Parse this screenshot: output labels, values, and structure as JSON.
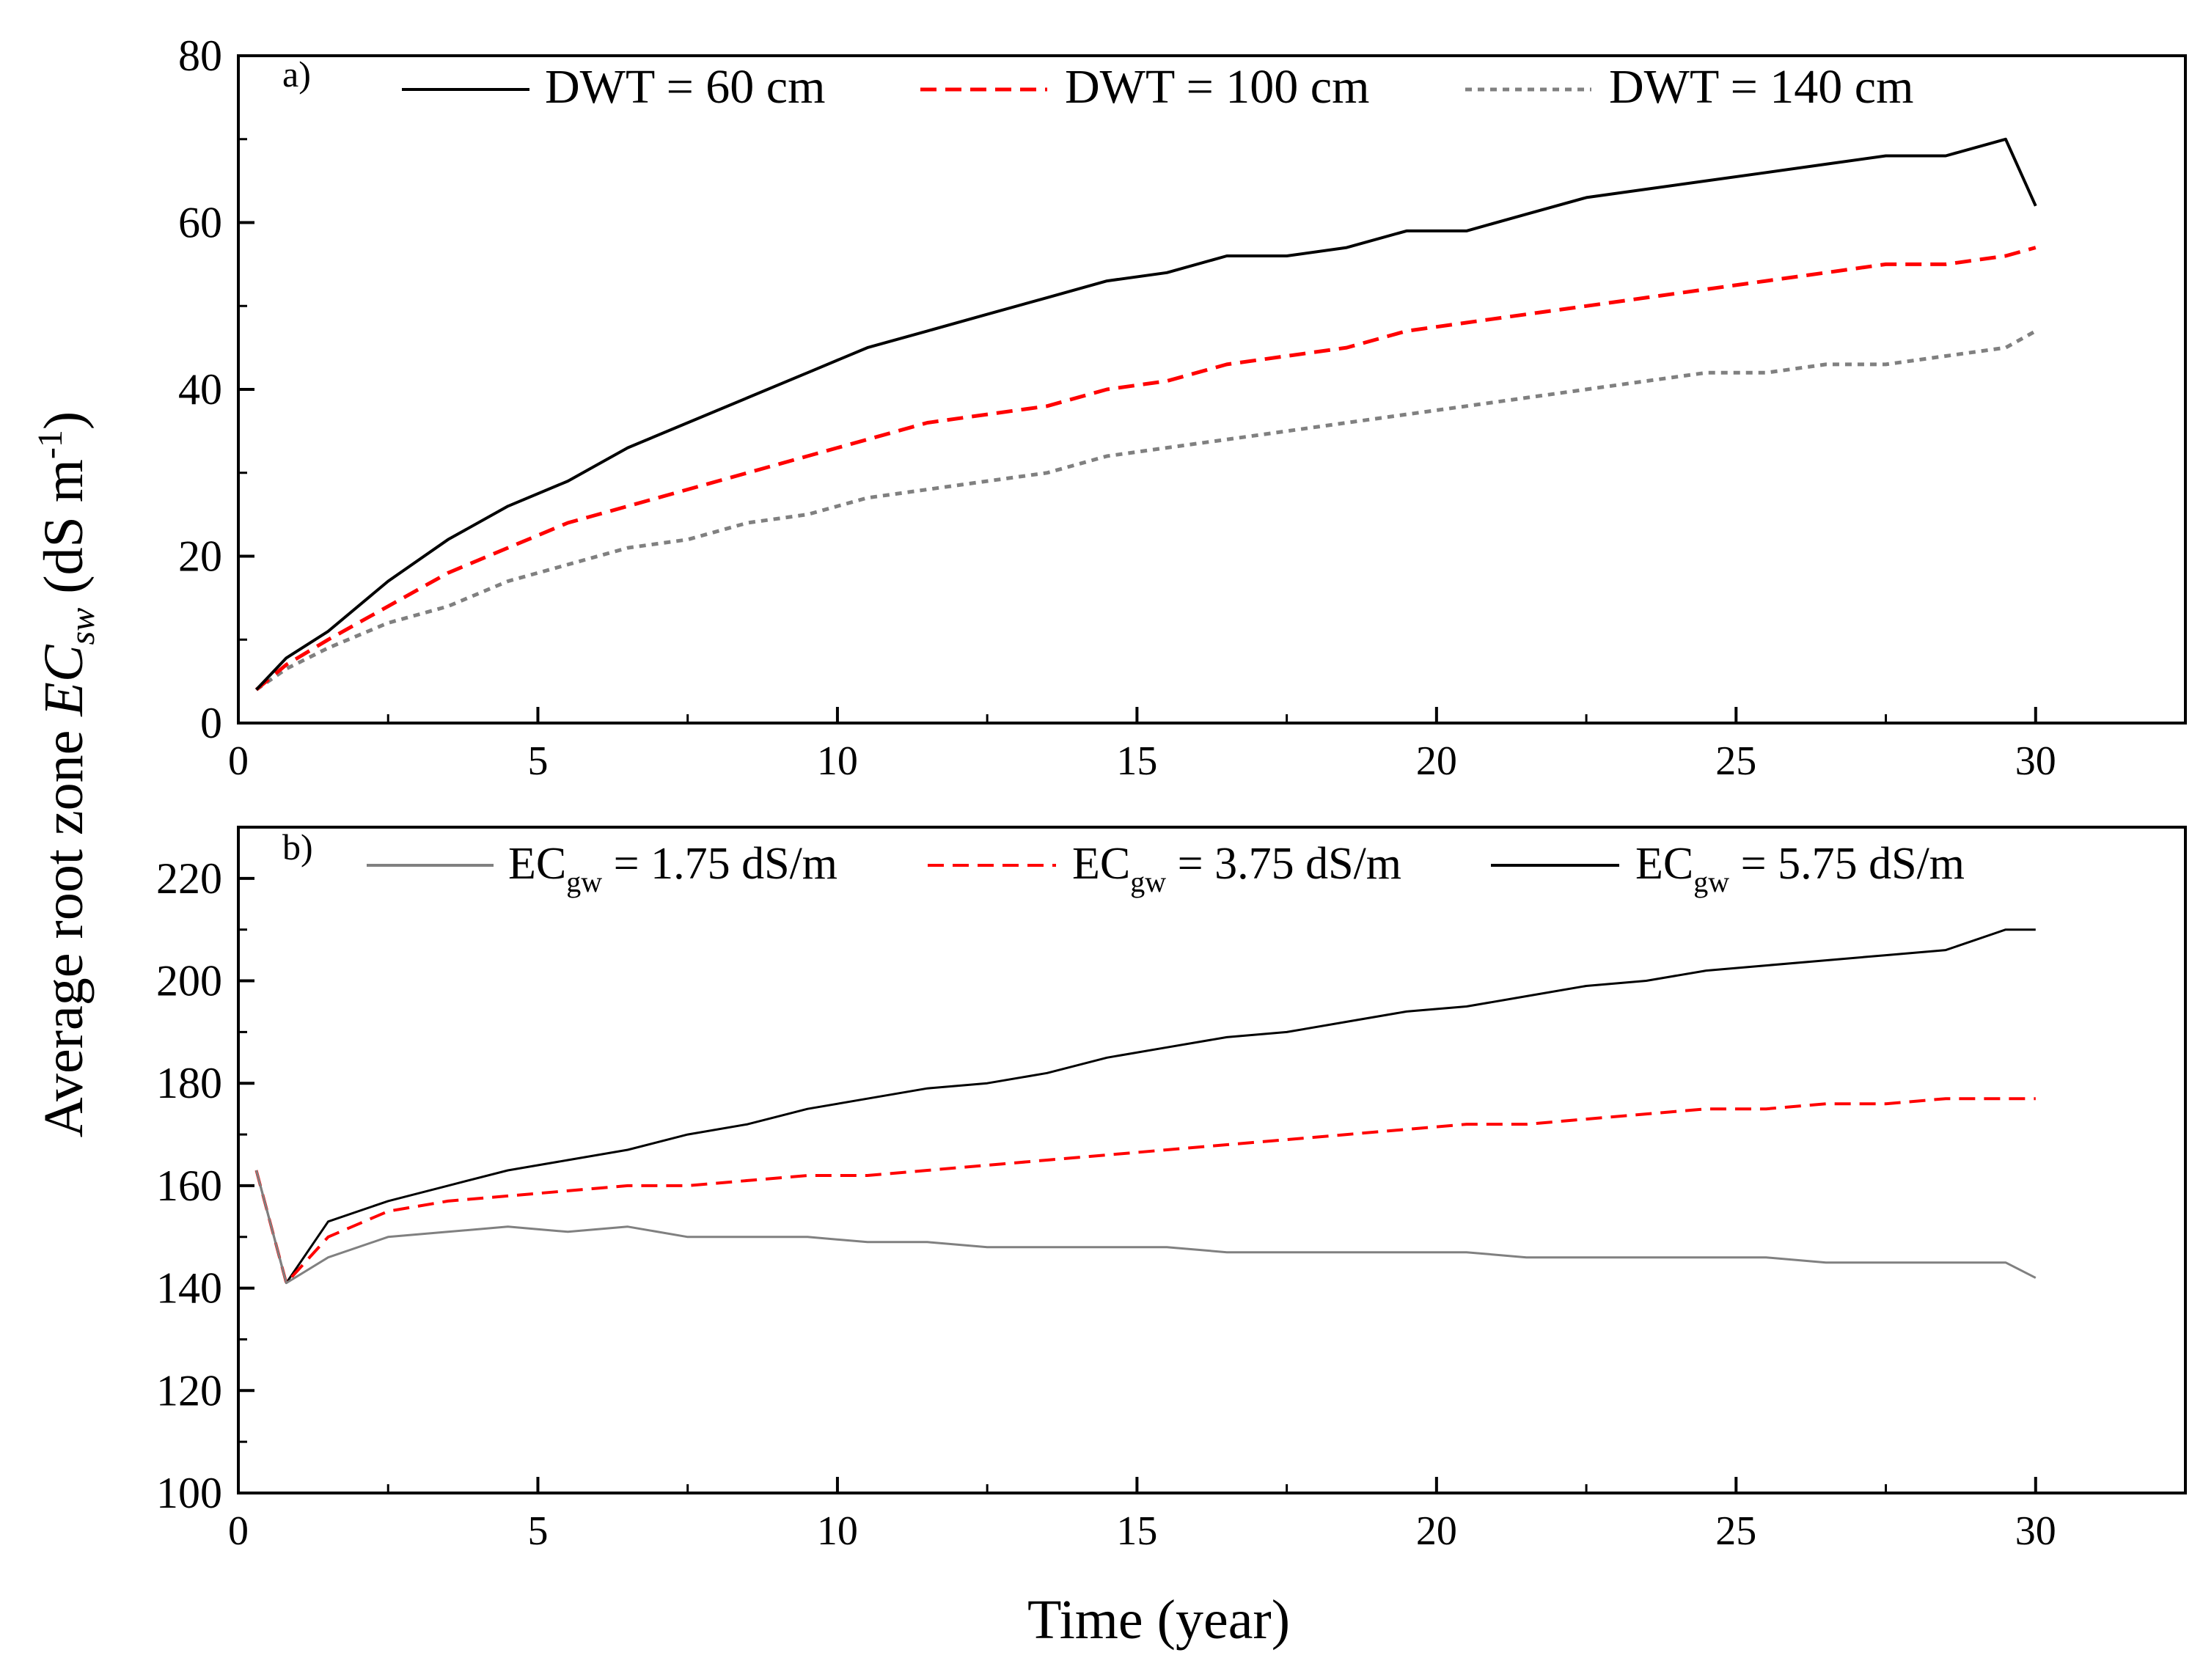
{
  "figure": {
    "shared_ylabel_main": "Average root zone ",
    "shared_ylabel_ec": "EC",
    "shared_ylabel_sub": "sw",
    "shared_ylabel_unit_open": " (dS m",
    "shared_ylabel_unit_sup": "-1",
    "shared_ylabel_unit_close": ")",
    "shared_xlabel": "Time (year)"
  },
  "colors": {
    "black": "#000000",
    "red": "#ff0000",
    "gray": "#808080"
  },
  "chart_data": [
    {
      "type": "line",
      "panel_label": "a)",
      "xlim": [
        0,
        32.5
      ],
      "ylim": [
        0,
        80
      ],
      "xticks": [
        0,
        5,
        10,
        15,
        20,
        25,
        30
      ],
      "yticks": [
        0,
        20,
        40,
        60,
        80
      ],
      "grid": false,
      "legend_position": "top",
      "series": [
        {
          "name": "DWT = 60 cm",
          "label_text": "DWT = 60 cm",
          "color": "#000000",
          "dash": "solid",
          "x": [
            0.3,
            0.8,
            1.5,
            2.5,
            3.5,
            4.5,
            5.5,
            6.5,
            7.5,
            8.5,
            9.5,
            10.5,
            11.5,
            12.5,
            13.5,
            14.5,
            15.5,
            16.5,
            17.5,
            18.5,
            19.5,
            20.5,
            21.5,
            22.5,
            23.5,
            24.5,
            25.5,
            26.5,
            27.5,
            28.5,
            29.5,
            30.0
          ],
          "y": [
            4,
            7.8,
            11,
            17,
            22,
            26,
            29,
            33,
            36,
            39,
            42,
            45,
            47,
            49,
            51,
            53,
            54,
            56,
            56,
            57,
            59,
            59,
            61,
            63,
            64,
            65,
            66,
            67,
            68,
            68,
            70,
            62
          ]
        },
        {
          "name": "DWT = 100 cm",
          "label_text": "DWT = 100 cm",
          "color": "#ff0000",
          "dash": "dashed",
          "x": [
            0.3,
            0.8,
            1.5,
            2.5,
            3.5,
            4.5,
            5.5,
            6.5,
            7.5,
            8.5,
            9.5,
            10.5,
            11.5,
            12.5,
            13.5,
            14.5,
            15.5,
            16.5,
            17.5,
            18.5,
            19.5,
            20.5,
            21.5,
            22.5,
            23.5,
            24.5,
            25.5,
            26.5,
            27.5,
            28.5,
            29.5,
            30.0
          ],
          "y": [
            4,
            7,
            10,
            14,
            18,
            21,
            24,
            26,
            28,
            30,
            32,
            34,
            36,
            37,
            38,
            40,
            41,
            43,
            44,
            45,
            47,
            48,
            49,
            50,
            51,
            52,
            53,
            54,
            55,
            55,
            56,
            57
          ]
        },
        {
          "name": "DWT = 140 cm",
          "label_text": "DWT = 140 cm",
          "color": "#808080",
          "dash": "dotted",
          "x": [
            0.3,
            0.8,
            1.5,
            2.5,
            3.5,
            4.5,
            5.5,
            6.5,
            7.5,
            8.5,
            9.5,
            10.5,
            11.5,
            12.5,
            13.5,
            14.5,
            15.5,
            16.5,
            17.5,
            18.5,
            19.5,
            20.5,
            21.5,
            22.5,
            23.5,
            24.5,
            25.5,
            26.5,
            27.5,
            28.5,
            29.5,
            30.0
          ],
          "y": [
            4,
            6.5,
            9,
            12,
            14,
            17,
            19,
            21,
            22,
            24,
            25,
            27,
            28,
            29,
            30,
            32,
            33,
            34,
            35,
            36,
            37,
            38,
            39,
            40,
            41,
            42,
            42,
            43,
            43,
            44,
            45,
            47
          ]
        }
      ]
    },
    {
      "type": "line",
      "panel_label": "b)",
      "xlim": [
        0,
        32.5
      ],
      "ylim": [
        100,
        230
      ],
      "xticks": [
        0,
        5,
        10,
        15,
        20,
        25,
        30
      ],
      "yticks": [
        100,
        120,
        140,
        160,
        180,
        200,
        220
      ],
      "grid": false,
      "legend_position": "top",
      "series": [
        {
          "name": "EC_gw = 1.75 dS/m",
          "label_main": "EC",
          "label_sub": "gw",
          "label_rest": " = 1.75 dS/m",
          "color": "#808080",
          "dash": "solid",
          "x": [
            0.3,
            0.8,
            1.5,
            2.5,
            3.5,
            4.5,
            5.5,
            6.5,
            7.5,
            8.5,
            9.5,
            10.5,
            11.5,
            12.5,
            13.5,
            14.5,
            15.5,
            16.5,
            17.5,
            18.5,
            19.5,
            20.5,
            21.5,
            22.5,
            23.5,
            24.5,
            25.5,
            26.5,
            27.5,
            28.5,
            29.5,
            30.0
          ],
          "y": [
            163,
            141,
            146,
            150,
            151,
            152,
            151,
            152,
            150,
            150,
            150,
            149,
            149,
            148,
            148,
            148,
            148,
            147,
            147,
            147,
            147,
            147,
            146,
            146,
            146,
            146,
            146,
            145,
            145,
            145,
            145,
            142
          ]
        },
        {
          "name": "EC_gw = 3.75 dS/m",
          "label_main": "EC",
          "label_sub": "gw",
          "label_rest": " = 3.75 dS/m",
          "color": "#ff0000",
          "dash": "dashed",
          "x": [
            0.3,
            0.8,
            1.5,
            2.5,
            3.5,
            4.5,
            5.5,
            6.5,
            7.5,
            8.5,
            9.5,
            10.5,
            11.5,
            12.5,
            13.5,
            14.5,
            15.5,
            16.5,
            17.5,
            18.5,
            19.5,
            20.5,
            21.5,
            22.5,
            23.5,
            24.5,
            25.5,
            26.5,
            27.5,
            28.5,
            29.5,
            30.0
          ],
          "y": [
            163,
            141,
            150,
            155,
            157,
            158,
            159,
            160,
            160,
            161,
            162,
            162,
            163,
            164,
            165,
            166,
            167,
            168,
            169,
            170,
            171,
            172,
            172,
            173,
            174,
            175,
            175,
            176,
            176,
            177,
            177,
            177
          ]
        },
        {
          "name": "EC_gw = 5.75 dS/m",
          "label_main": "EC",
          "label_sub": "gw",
          "label_rest": " = 5.75 dS/m",
          "color": "#000000",
          "dash": "solid",
          "x": [
            0.3,
            0.8,
            1.5,
            2.5,
            3.5,
            4.5,
            5.5,
            6.5,
            7.5,
            8.5,
            9.5,
            10.5,
            11.5,
            12.5,
            13.5,
            14.5,
            15.5,
            16.5,
            17.5,
            18.5,
            19.5,
            20.5,
            21.5,
            22.5,
            23.5,
            24.5,
            25.5,
            26.5,
            27.5,
            28.5,
            29.5,
            30.0
          ],
          "y": [
            163,
            141,
            153,
            157,
            160,
            163,
            165,
            167,
            170,
            172,
            175,
            177,
            179,
            180,
            182,
            185,
            187,
            189,
            190,
            192,
            194,
            195,
            197,
            199,
            200,
            202,
            203,
            204,
            205,
            206,
            210,
            210
          ]
        }
      ]
    }
  ]
}
